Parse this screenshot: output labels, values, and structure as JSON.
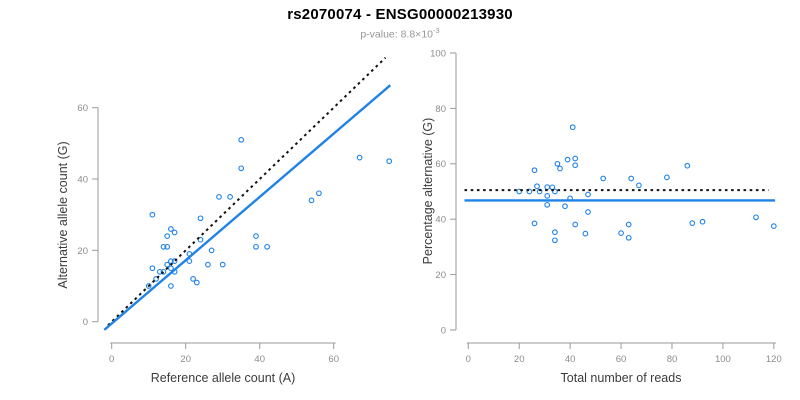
{
  "header": {
    "title": "rs2070074 - ENSG00000213930",
    "p_value_prefix": "p-value: 8.8×10",
    "p_value_exponent": "-3"
  },
  "colors": {
    "accent_blue": "#1E82E8",
    "line_black": "#111111",
    "axis_gray": "#9A9A9A",
    "tick_label_gray": "#8C8C8C",
    "axis_title_gray": "#3C3C3C",
    "subtitle_gray": "#969696",
    "background": "#FFFFFF"
  },
  "chart_data": [
    {
      "type": "scatter",
      "name": "left-plot",
      "xlabel": "Reference allele count (A)",
      "ylabel": "Alternative allele count (G)",
      "xlim": [
        0,
        75
      ],
      "ylim": [
        0,
        75
      ],
      "xticks": [
        0,
        20,
        40,
        60
      ],
      "yticks": [
        0,
        20,
        40,
        60
      ],
      "grid": false,
      "legend": "none",
      "marker": "open-circle",
      "marker_color": "#1E82E8",
      "points": [
        [
          10,
          10
        ],
        [
          11,
          15
        ],
        [
          11,
          30
        ],
        [
          12,
          12
        ],
        [
          13,
          14
        ],
        [
          14,
          14
        ],
        [
          14,
          21
        ],
        [
          15,
          16
        ],
        [
          15,
          21
        ],
        [
          15,
          24
        ],
        [
          16,
          10
        ],
        [
          16,
          15
        ],
        [
          16,
          17
        ],
        [
          16,
          26
        ],
        [
          17,
          14
        ],
        [
          17,
          17
        ],
        [
          17,
          25
        ],
        [
          21,
          17
        ],
        [
          21,
          19
        ],
        [
          22,
          12
        ],
        [
          23,
          11
        ],
        [
          24,
          23
        ],
        [
          24,
          29
        ],
        [
          26,
          16
        ],
        [
          27,
          20
        ],
        [
          29,
          35
        ],
        [
          30,
          16
        ],
        [
          32,
          35
        ],
        [
          35,
          43
        ],
        [
          35,
          51
        ],
        [
          39,
          21
        ],
        [
          39,
          24
        ],
        [
          42,
          21
        ],
        [
          54,
          34
        ],
        [
          56,
          36
        ],
        [
          67,
          46
        ],
        [
          75,
          45
        ]
      ],
      "lines": [
        {
          "name": "identity-line",
          "style": "dotted",
          "color": "#111111",
          "x": [
            -1,
            74
          ],
          "y": [
            -1,
            74
          ]
        },
        {
          "name": "regression-line",
          "style": "solid",
          "color": "#1E82E8",
          "x": [
            -2,
            75.3
          ],
          "y": [
            -2.3,
            66.3
          ]
        }
      ]
    },
    {
      "type": "scatter",
      "name": "right-plot",
      "xlabel": "Total number of reads",
      "ylabel": "Percentage alternative (G)",
      "xlim": [
        0,
        121
      ],
      "ylim": [
        0,
        100
      ],
      "xticks": [
        0,
        20,
        40,
        60,
        80,
        100,
        120
      ],
      "yticks": [
        0,
        20,
        40,
        60,
        80,
        100
      ],
      "grid": false,
      "legend": "none",
      "marker": "open-circle",
      "marker_color": "#1E82E8",
      "points": [
        [
          20,
          50
        ],
        [
          26,
          57.7
        ],
        [
          41,
          73.2
        ],
        [
          24,
          50
        ],
        [
          27,
          51.9
        ],
        [
          28,
          50
        ],
        [
          35,
          60
        ],
        [
          31,
          51.6
        ],
        [
          36,
          58.3
        ],
        [
          39,
          61.5
        ],
        [
          26,
          38.5
        ],
        [
          31,
          48.4
        ],
        [
          33,
          51.5
        ],
        [
          42,
          61.9
        ],
        [
          31,
          45.2
        ],
        [
          34,
          50
        ],
        [
          42,
          59.5
        ],
        [
          38,
          44.7
        ],
        [
          40,
          47.5
        ],
        [
          34,
          35.3
        ],
        [
          34,
          32.4
        ],
        [
          47,
          48.9
        ],
        [
          53,
          54.7
        ],
        [
          42,
          38.1
        ],
        [
          47,
          42.6
        ],
        [
          64,
          54.7
        ],
        [
          46,
          34.8
        ],
        [
          67,
          52.2
        ],
        [
          78,
          55.1
        ],
        [
          86,
          59.3
        ],
        [
          60,
          35
        ],
        [
          63,
          38.1
        ],
        [
          63,
          33.3
        ],
        [
          88,
          38.6
        ],
        [
          92,
          39.1
        ],
        [
          113,
          40.7
        ],
        [
          120,
          37.5
        ]
      ],
      "lines": [
        {
          "name": "expected-50pct-line",
          "style": "dotted",
          "color": "#111111",
          "x": [
            -1.5,
            118
          ],
          "y": [
            50.5,
            50.5
          ]
        },
        {
          "name": "fitted-line",
          "style": "solid",
          "color": "#1E82E8",
          "x": [
            -1.5,
            120.5
          ],
          "y": [
            46.8,
            46.8
          ]
        }
      ]
    }
  ]
}
